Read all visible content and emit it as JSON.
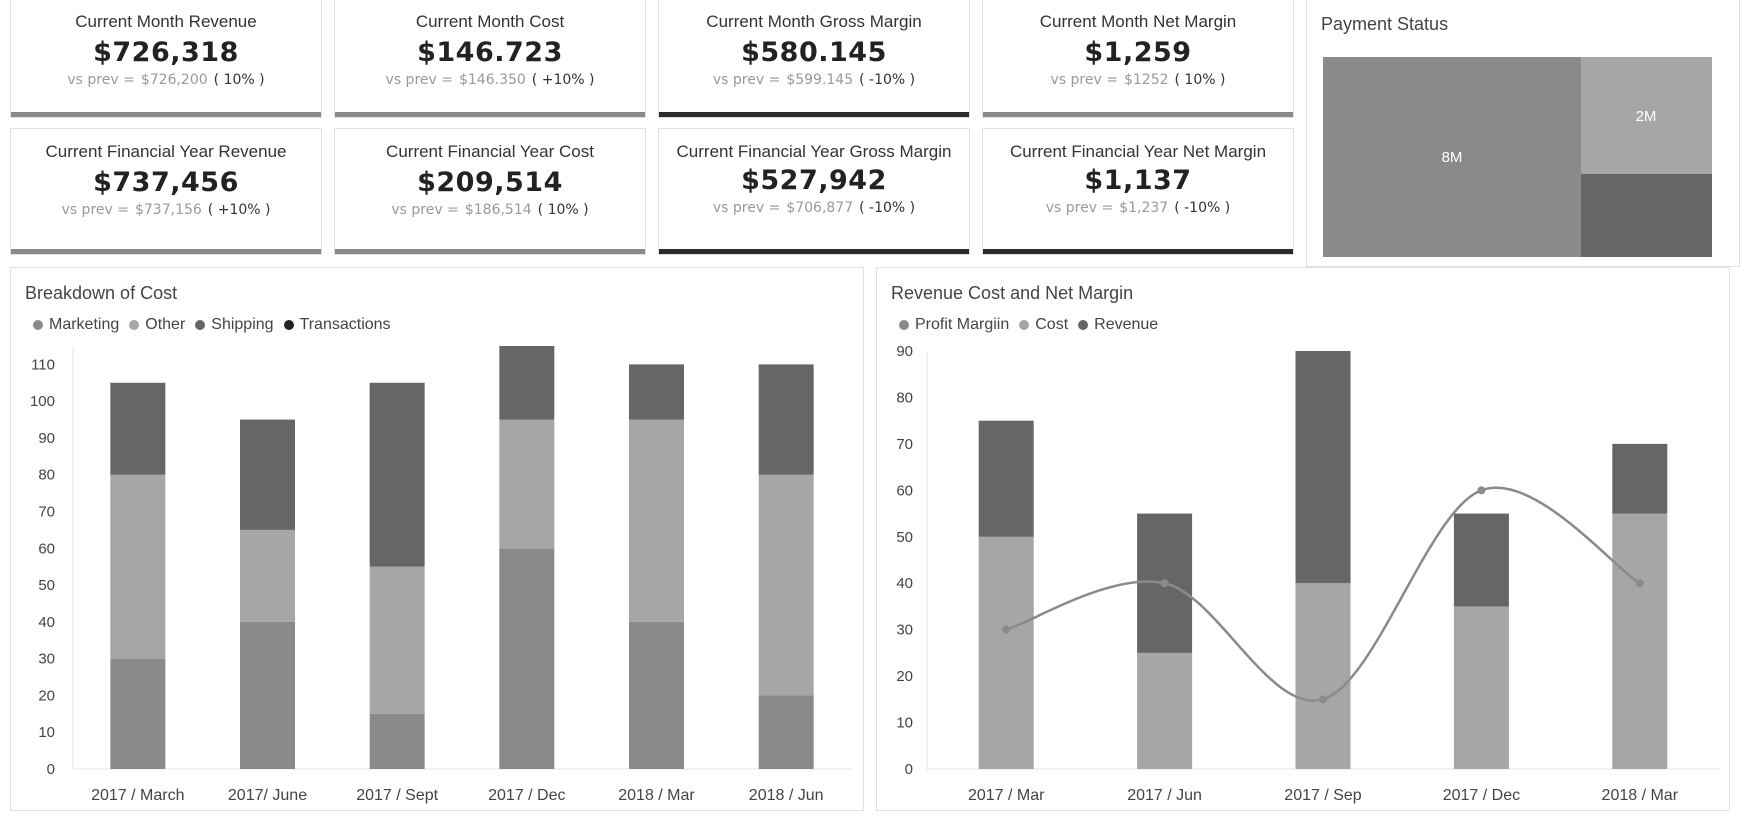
{
  "kpis": [
    {
      "title": "Current Month Revenue",
      "value": "$726,318",
      "prev_label": "vs prev =",
      "prev_value": "$726,200",
      "pct": "( 10% )",
      "bar": "light"
    },
    {
      "title": "Current Month Cost",
      "value": "$146.723",
      "prev_label": "vs prev =",
      "prev_value": "$146.350",
      "pct": "( +10% )",
      "bar": "light"
    },
    {
      "title": "Current Month Gross Margin",
      "value": "$580.145",
      "prev_label": "vs prev =",
      "prev_value": "$599.145",
      "pct": "( -10% )",
      "bar": "dark"
    },
    {
      "title": "Current Month Net Margin",
      "value": "$1,259",
      "prev_label": "vs prev =",
      "prev_value": "$1252",
      "pct": "( 10% )",
      "bar": "light"
    },
    {
      "title": "Current Financial Year Revenue",
      "value": "$737,456",
      "prev_label": "vs prev =",
      "prev_value": "$737,156",
      "pct": "( +10% )",
      "bar": "light"
    },
    {
      "title": "Current Financial Year Cost",
      "value": "$209,514",
      "prev_label": "vs prev =",
      "prev_value": "$186,514",
      "pct": "( 10% )",
      "bar": "light"
    },
    {
      "title": "Current Financial Year Gross Margin",
      "value": "$527,942",
      "prev_label": "vs prev =",
      "prev_value": "$706,877",
      "pct": "( -10% )",
      "bar": "dark"
    },
    {
      "title": "Current Financial Year Net Margin",
      "value": "$1,137",
      "prev_label": "vs prev =",
      "prev_value": "$1,237",
      "pct": "( -10% )",
      "bar": "dark"
    }
  ],
  "payment_status": {
    "title": "Payment Status",
    "labels": [
      "8M",
      "2M"
    ],
    "colors": [
      "#8a8a8a",
      "#a6a6a6",
      "#666666"
    ]
  },
  "colors": {
    "light": "#8a8a8a",
    "lighter": "#a6a6a6",
    "mid": "#666666",
    "dark": "#222222"
  },
  "chart_data": [
    {
      "type": "bar",
      "title": "Breakdown of Cost",
      "stacked": true,
      "categories": [
        "2017 / March",
        "2017/ June",
        "2017 / Sept",
        "2017 / Dec",
        "2018 / Mar",
        "2018 / Jun"
      ],
      "series": [
        {
          "name": "Marketing",
          "values": [
            30,
            40,
            15,
            60,
            40,
            20
          ],
          "color": "#8a8a8a"
        },
        {
          "name": "Other",
          "values": [
            50,
            25,
            40,
            35,
            55,
            60
          ],
          "color": "#a6a6a6"
        },
        {
          "name": "Shipping",
          "values": [
            25,
            30,
            50,
            20,
            15,
            30
          ],
          "color": "#666666"
        },
        {
          "name": "Transactions",
          "values": [
            0,
            0,
            0,
            0,
            0,
            0
          ],
          "color": "#222222"
        }
      ],
      "ylim": [
        0,
        115
      ],
      "yticks": [
        0,
        10,
        20,
        30,
        40,
        50,
        60,
        70,
        80,
        90,
        100,
        110
      ],
      "legend": "top-left",
      "grid": false
    },
    {
      "type": "bar",
      "title": "Revenue Cost and Net Margin",
      "stacked": true,
      "categories": [
        "2017 / Mar",
        "2017 / Jun",
        "2017 / Sep",
        "2017 / Dec",
        "2018 / Mar"
      ],
      "series": [
        {
          "name": "Profit Margiin",
          "type": "line",
          "values": [
            30,
            40,
            15,
            60,
            40
          ],
          "color": "#8a8a8a"
        },
        {
          "name": "Cost",
          "values": [
            50,
            25,
            40,
            35,
            55
          ],
          "color": "#a6a6a6"
        },
        {
          "name": "Revenue",
          "values": [
            25,
            30,
            50,
            20,
            15
          ],
          "color": "#666666"
        }
      ],
      "ylim": [
        0,
        90
      ],
      "yticks": [
        0,
        10,
        20,
        30,
        40,
        50,
        60,
        70,
        80,
        90
      ],
      "legend": "top-left",
      "grid": false
    }
  ]
}
